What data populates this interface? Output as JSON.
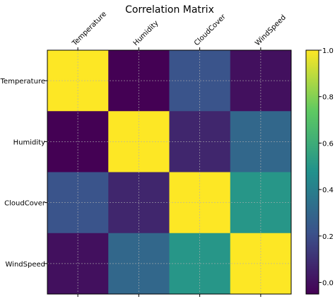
{
  "chart_data": {
    "type": "heatmap",
    "title": "Correlation Matrix",
    "xlabel": "",
    "ylabel": "",
    "x_categories": [
      "Temperature",
      "Humidity",
      "CloudCover",
      "WindSpeed"
    ],
    "y_categories": [
      "Temperature",
      "Humidity",
      "CloudCover",
      "WindSpeed"
    ],
    "values": [
      [
        1.0,
        -0.05,
        0.22,
        0.0
      ],
      [
        -0.05,
        1.0,
        0.07,
        0.3
      ],
      [
        0.22,
        0.07,
        1.0,
        0.5
      ],
      [
        0.0,
        0.3,
        0.5,
        1.0
      ]
    ],
    "colormap": "viridis",
    "vmin": -0.05,
    "vmax": 1.0,
    "grid": true,
    "colorbar": {
      "ticks": [
        0.0,
        0.2,
        0.4,
        0.6,
        0.8,
        1.0
      ],
      "tick_labels": [
        "0.0",
        "0.2",
        "0.4",
        "0.6",
        "0.8",
        "1.0"
      ]
    }
  }
}
